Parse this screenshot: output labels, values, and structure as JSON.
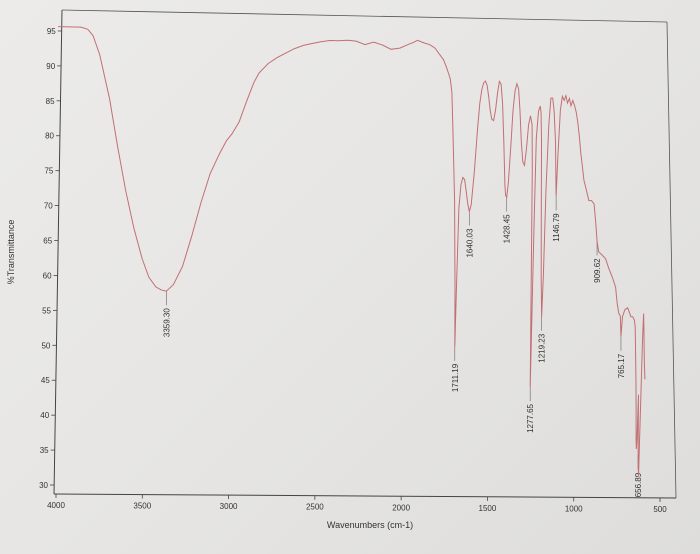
{
  "chart_data": {
    "type": "line",
    "xlabel": "Wavenumbers (cm-1)",
    "ylabel": "%Transmittance",
    "xlim": [
      4000,
      500
    ],
    "ylim": [
      30,
      97
    ],
    "x_ticks": [
      "4000",
      "3500",
      "3000",
      "2500",
      "2000",
      "1500",
      "1000",
      "500"
    ],
    "y_ticks": [
      "95",
      "90",
      "85",
      "80",
      "75",
      "70",
      "65",
      "60",
      "55",
      "50",
      "45",
      "40",
      "35",
      "30"
    ],
    "grid": false,
    "series": [
      {
        "color": "#c26f73",
        "x": [
          4000,
          3870,
          3830,
          3800,
          3760,
          3700,
          3650,
          3600,
          3550,
          3500,
          3460,
          3420,
          3390,
          3359.3,
          3320,
          3270,
          3220,
          3170,
          3120,
          3070,
          3030,
          3000,
          2960,
          2920,
          2880,
          2850,
          2800,
          2750,
          2700,
          2650,
          2600,
          2550,
          2500,
          2450,
          2400,
          2350,
          2300,
          2250,
          2200,
          2150,
          2100,
          2050,
          2000,
          1980,
          1950,
          1920,
          1880,
          1850,
          1800,
          1780,
          1760,
          1750,
          1740,
          1725,
          1715,
          1711.19,
          1707,
          1700,
          1690,
          1680,
          1670,
          1660,
          1650,
          1640.03,
          1630,
          1615,
          1600,
          1590,
          1580,
          1570,
          1560,
          1550,
          1540,
          1530,
          1520,
          1510,
          1500,
          1490,
          1480,
          1470,
          1460,
          1450,
          1440,
          1435,
          1428.45,
          1420,
          1410,
          1400,
          1390,
          1380,
          1370,
          1360,
          1350,
          1340,
          1330,
          1320,
          1310,
          1300,
          1290,
          1285,
          1277.65,
          1270,
          1265,
          1255,
          1245,
          1240,
          1235,
          1230,
          1225,
          1219.23,
          1213,
          1205,
          1195,
          1185,
          1175,
          1165,
          1155,
          1146.79,
          1140,
          1130,
          1120,
          1110,
          1100,
          1090,
          1080,
          1070,
          1060,
          1050,
          1040,
          1030,
          1020,
          1010,
          1000,
          990,
          975,
          960,
          945,
          930,
          920,
          909.62,
          900,
          880,
          860,
          840,
          820,
          800,
          790,
          780,
          770,
          765.17,
          758,
          745,
          730,
          720,
          710,
          700,
          690,
          685,
          680,
          675,
          672,
          670,
          668,
          665,
          662,
          660,
          656.89,
          653,
          650,
          646,
          642,
          638,
          635,
          630,
          625
        ],
        "y": [
          97.5,
          97.5,
          97.2,
          96.3,
          93.5,
          87,
          80,
          73.5,
          68,
          63.5,
          60.8,
          59.4,
          59,
          58.8,
          59.8,
          62.5,
          67,
          72,
          76.3,
          79.2,
          81.2,
          82.2,
          84,
          87,
          89.8,
          91.3,
          92.7,
          93.6,
          94.3,
          95,
          95.5,
          95.8,
          96.1,
          96.3,
          96.3,
          96.4,
          96.3,
          95.8,
          96.2,
          95.8,
          95.2,
          95.4,
          96,
          96.2,
          96.6,
          96.3,
          96,
          95.5,
          93.8,
          92.5,
          91,
          89,
          83,
          73,
          60,
          51.5,
          60,
          72,
          75.5,
          76.5,
          76.2,
          74.5,
          72.7,
          71.5,
          72.5,
          77.5,
          84,
          87.5,
          89.5,
          90.5,
          90.8,
          90.2,
          88.5,
          86.5,
          85.2,
          85,
          86.5,
          89,
          90.8,
          90.4,
          87.5,
          82,
          75.5,
          74,
          73.7,
          76,
          81,
          86.5,
          89.5,
          90.5,
          89.8,
          86.5,
          82,
          79,
          78.5,
          81,
          84.5,
          85.8,
          84.5,
          78,
          45.8,
          70,
          82.5,
          86.5,
          87.3,
          86.2,
          82,
          72,
          62,
          56.2,
          62,
          75,
          84.5,
          88.5,
          88.5,
          86.5,
          82,
          74,
          80,
          86.8,
          88.8,
          88.2,
          88.9,
          87.8,
          88.5,
          87.4,
          88.2,
          87.5,
          86.5,
          85,
          83,
          80.5,
          78.5,
          76.5,
          75,
          73.5,
          73.5,
          73,
          70.5,
          67.5,
          66,
          65.5,
          65,
          63.5,
          62.3,
          60.8,
          58.5,
          57,
          56.5,
          53.5,
          56.5,
          57.5,
          57.8,
          57.2,
          56.5,
          56.5,
          56,
          55,
          51,
          46.5,
          42,
          38.5,
          37,
          38,
          42,
          45,
          36,
          33,
          38,
          46,
          53,
          57,
          55,
          50,
          47.3
        ]
      }
    ],
    "peak_labels": [
      {
        "x": 3359.3,
        "text": "3359.30"
      },
      {
        "x": 1711.19,
        "text": "1711.19"
      },
      {
        "x": 1640.03,
        "text": "1640.03"
      },
      {
        "x": 1428.45,
        "text": "1428.45"
      },
      {
        "x": 1277.65,
        "text": "1277.65"
      },
      {
        "x": 1219.23,
        "text": "1219.23"
      },
      {
        "x": 1146.79,
        "text": "1146.79"
      },
      {
        "x": 909.62,
        "text": "909.62"
      },
      {
        "x": 765.17,
        "text": "765.17"
      },
      {
        "x": 656.89,
        "text": "656.89"
      }
    ]
  }
}
